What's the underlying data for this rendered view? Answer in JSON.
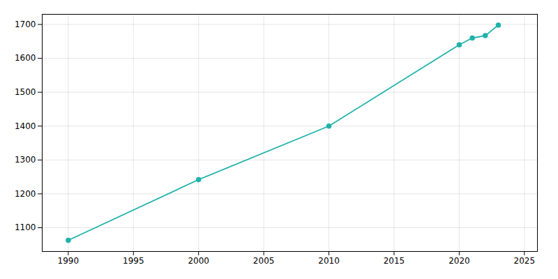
{
  "chart_data": {
    "type": "line",
    "x": [
      1990,
      2000,
      2010,
      2020,
      2021,
      2022,
      2023
    ],
    "values": [
      1063,
      1242,
      1400,
      1640,
      1660,
      1667,
      1698
    ],
    "color": "#20b2aa",
    "marker": "circle",
    "xlim": [
      1988,
      2026
    ],
    "ylim": [
      1030,
      1730
    ],
    "xticks": [
      1990,
      1995,
      2000,
      2005,
      2010,
      2015,
      2020,
      2025
    ],
    "yticks": [
      1100,
      1200,
      1300,
      1400,
      1500,
      1600,
      1700
    ],
    "grid": true
  }
}
